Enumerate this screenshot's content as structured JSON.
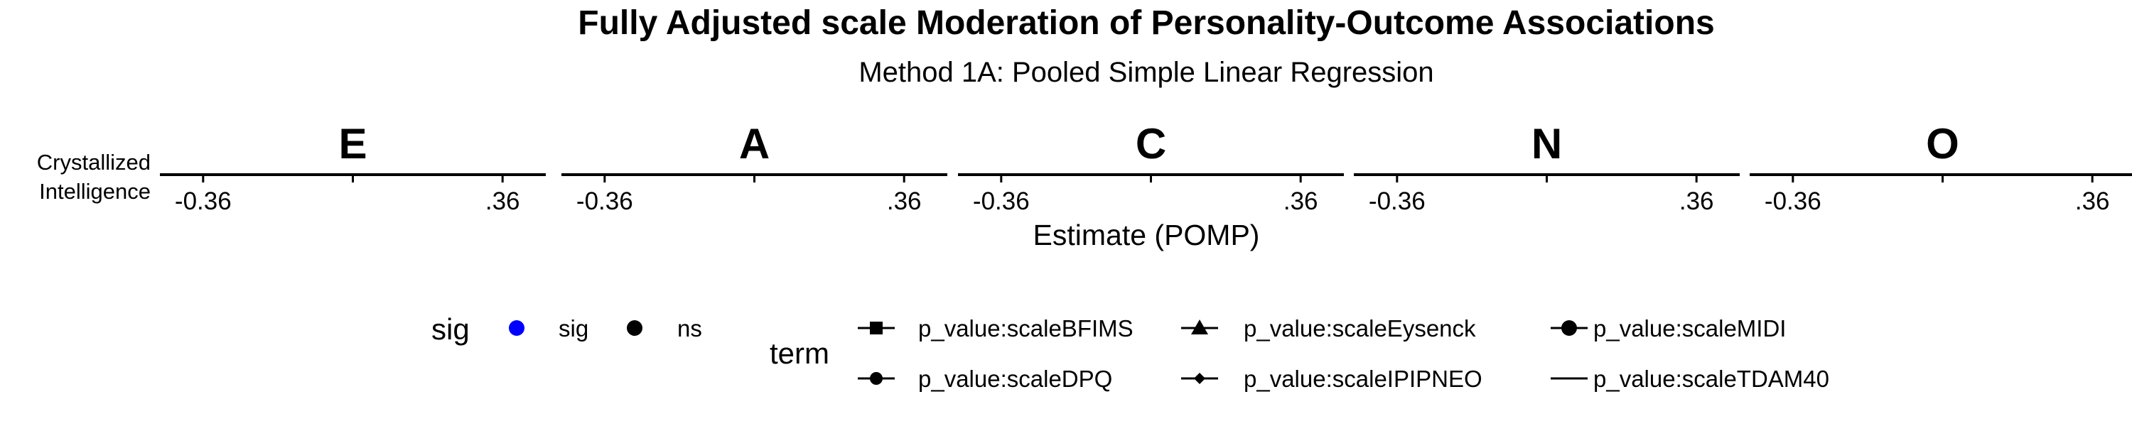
{
  "chart_data": {
    "type": "scatter",
    "title": "Fully Adjusted scale Moderation of Personality-Outcome Associations",
    "subtitle": "Method 1A: Pooled Simple Linear Regression",
    "xlabel": "Estimate (POMP)",
    "row_label": "Crystallized Intelligence",
    "facets": [
      "E",
      "A",
      "C",
      "N",
      "O"
    ],
    "x_ticks": [
      "-0.36",
      ".36"
    ],
    "xlim": [
      -0.36,
      0.36
    ],
    "points": [],
    "legend_position": "bottom",
    "legends": {
      "sig": {
        "title": "sig",
        "items": [
          {
            "label": "sig",
            "color": "#0000FF"
          },
          {
            "label": "ns",
            "color": "#000000"
          }
        ]
      },
      "term": {
        "title": "term",
        "items": [
          {
            "label": "p_value:scaleBFIMS",
            "shape": "square"
          },
          {
            "label": "p_value:scaleDPQ",
            "shape": "circle"
          },
          {
            "label": "p_value:scaleEysenck",
            "shape": "triangle"
          },
          {
            "label": "p_value:scaleIPIPNEO",
            "shape": "diamond"
          },
          {
            "label": "p_value:scaleMIDI",
            "shape": "circle-large"
          },
          {
            "label": "p_value:scaleTDAM40",
            "shape": "none"
          }
        ]
      }
    }
  }
}
